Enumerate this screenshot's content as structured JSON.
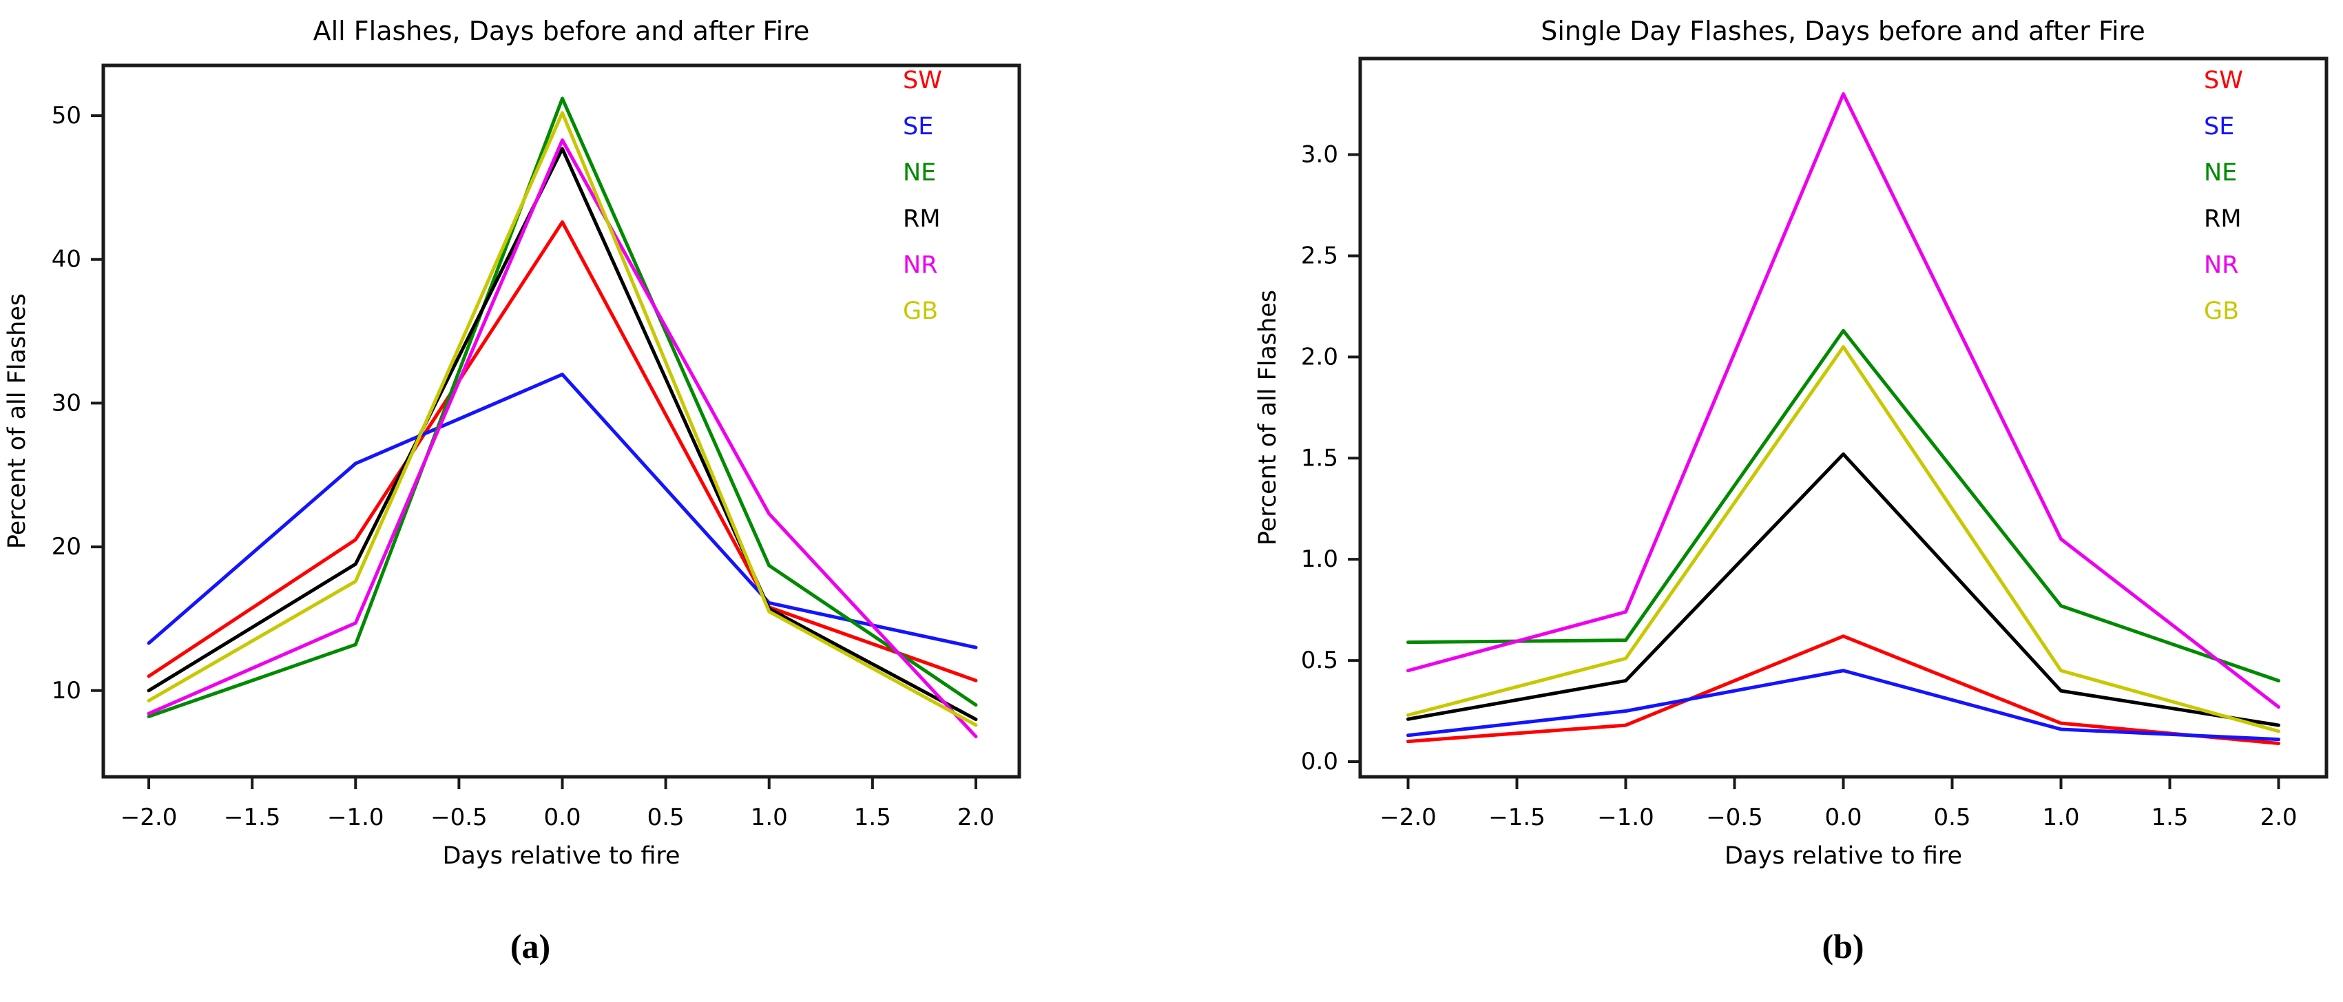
{
  "figure": {
    "background": "#ffffff",
    "captions": {
      "a": "(a)",
      "b": "(b)"
    }
  },
  "chart_data": [
    {
      "id": "all-flashes",
      "type": "line",
      "title": "All Flashes, Days before and after Fire",
      "xlabel": "Days relative to fire",
      "ylabel": "Percent of all Flashes",
      "caption": "(a)",
      "x": [
        -2,
        -1,
        0,
        1,
        2
      ],
      "series": [
        {
          "name": "SW",
          "color": "#ff0000",
          "values": [
            11.0,
            20.5,
            42.6,
            15.8,
            10.7
          ]
        },
        {
          "name": "SE",
          "color": "#1414ff",
          "values": [
            13.3,
            25.8,
            32.0,
            16.1,
            13.0
          ]
        },
        {
          "name": "NE",
          "color": "#008a00",
          "values": [
            8.2,
            13.2,
            51.2,
            18.7,
            9.0
          ]
        },
        {
          "name": "RM",
          "color": "#000000",
          "values": [
            10.0,
            18.8,
            47.7,
            15.7,
            8.0
          ]
        },
        {
          "name": "NR",
          "color": "#ee00ee",
          "values": [
            8.4,
            14.7,
            48.3,
            22.3,
            6.8
          ]
        },
        {
          "name": "GB",
          "color": "#c8c800",
          "values": [
            9.3,
            17.6,
            50.2,
            15.5,
            7.6
          ]
        }
      ],
      "xticks": {
        "values": [
          -2,
          -1.5,
          -1,
          -0.5,
          0,
          0.5,
          1,
          1.5,
          2
        ],
        "labels": [
          "−2.0",
          "−1.5",
          "−1.0",
          "−0.5",
          "0.0",
          "0.5",
          "1.0",
          "1.5",
          "2.0"
        ]
      },
      "yticks": {
        "values": [
          10,
          20,
          30,
          40,
          50
        ],
        "labels": [
          "10",
          "20",
          "30",
          "40",
          "50"
        ]
      },
      "xlim": [
        -2.22,
        2.21
      ],
      "ylim": [
        4.0,
        53.5
      ],
      "grid": false,
      "legend": {
        "position": "upper right inside",
        "frame": false,
        "entries": [
          "SW",
          "SE",
          "NE",
          "RM",
          "NR",
          "GB"
        ]
      }
    },
    {
      "id": "single-day-flashes",
      "type": "line",
      "title": "Single Day Flashes, Days before and after Fire",
      "xlabel": "Days relative to fire",
      "ylabel": "Percent of all Flashes",
      "caption": "(b)",
      "x": [
        -2,
        -1,
        0,
        1,
        2
      ],
      "series": [
        {
          "name": "SW",
          "color": "#ff0000",
          "values": [
            0.1,
            0.18,
            0.62,
            0.19,
            0.09
          ]
        },
        {
          "name": "SE",
          "color": "#1414ff",
          "values": [
            0.13,
            0.25,
            0.45,
            0.16,
            0.11
          ]
        },
        {
          "name": "NE",
          "color": "#008a00",
          "values": [
            0.59,
            0.6,
            2.13,
            0.77,
            0.4
          ]
        },
        {
          "name": "RM",
          "color": "#000000",
          "values": [
            0.21,
            0.4,
            1.52,
            0.35,
            0.18
          ]
        },
        {
          "name": "NR",
          "color": "#ee00ee",
          "values": [
            0.45,
            0.74,
            3.3,
            1.1,
            0.27
          ]
        },
        {
          "name": "GB",
          "color": "#c8c800",
          "values": [
            0.23,
            0.51,
            2.05,
            0.45,
            0.15
          ]
        }
      ],
      "xticks": {
        "values": [
          -2,
          -1.5,
          -1,
          -0.5,
          0,
          0.5,
          1,
          1.5,
          2
        ],
        "labels": [
          "−2.0",
          "−1.5",
          "−1.0",
          "−0.5",
          "0.0",
          "0.5",
          "1.0",
          "1.5",
          "2.0"
        ]
      },
      "yticks": {
        "values": [
          0,
          0.5,
          1,
          1.5,
          2,
          2.5,
          3
        ],
        "labels": [
          "0.0",
          "0.5",
          "1.0",
          "1.5",
          "2.0",
          "2.5",
          "3.0"
        ]
      },
      "xlim": [
        -2.22,
        2.22
      ],
      "ylim": [
        -0.075,
        3.475
      ],
      "grid": false,
      "legend": {
        "position": "upper right inside",
        "frame": false,
        "entries": [
          "SW",
          "SE",
          "NE",
          "RM",
          "NR",
          "GB"
        ]
      }
    }
  ]
}
